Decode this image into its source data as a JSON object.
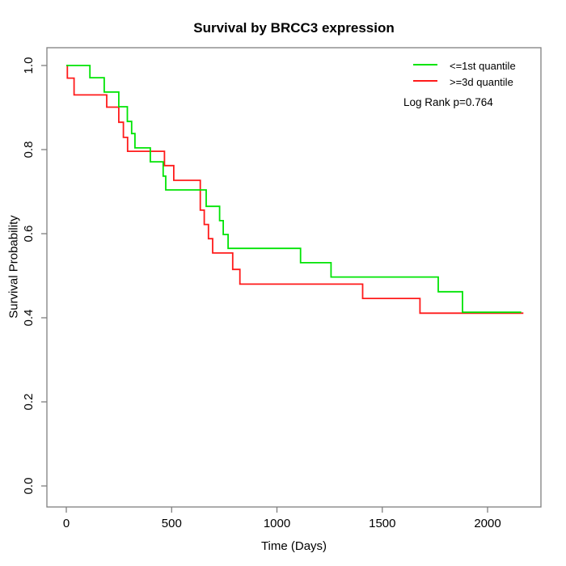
{
  "figure": {
    "legend": {
      "items": [
        {
          "label": "<=1st quantile",
          "color": "#00e404"
        },
        {
          "label": ">=3d quantile",
          "color": "#ff1a1a"
        }
      ]
    }
  },
  "chart_data": {
    "type": "line",
    "subtype": "kaplan_meier_step_survival",
    "title": "Survival by BRCC3 expression",
    "xlabel": "Time (Days)",
    "ylabel": "Survival Probability",
    "annotation": "Log Rank p=0.764",
    "x_ticks": [
      0,
      500,
      1000,
      1500,
      2000
    ],
    "y_ticks": [
      0.0,
      0.2,
      0.4,
      0.6,
      0.8,
      1.0
    ],
    "y_tick_labels": [
      "0.0",
      "0.2",
      "0.4",
      "0.6",
      "0.8",
      "1.0"
    ],
    "xlim": [
      -92,
      2253
    ],
    "ylim": [
      -0.05,
      1.04
    ],
    "grid": false,
    "legend_position": "top-right",
    "axis_color": "#7f7f7f",
    "series": [
      {
        "name": ">=3d quantile",
        "color": "#ff1a1a",
        "end_day": 2170,
        "steps": [
          [
            0,
            1.0
          ],
          [
            5,
            0.97
          ],
          [
            37,
            0.93
          ],
          [
            192,
            0.901
          ],
          [
            249,
            0.865
          ],
          [
            271,
            0.829
          ],
          [
            291,
            0.796
          ],
          [
            466,
            0.762
          ],
          [
            510,
            0.727
          ],
          [
            636,
            0.656
          ],
          [
            655,
            0.622
          ],
          [
            675,
            0.588
          ],
          [
            695,
            0.554
          ],
          [
            790,
            0.515
          ],
          [
            824,
            0.48
          ],
          [
            1407,
            0.446
          ],
          [
            1679,
            0.411
          ]
        ]
      },
      {
        "name": "<=1st quantile",
        "color": "#00e404",
        "end_day": 2160,
        "steps": [
          [
            0,
            1.0
          ],
          [
            112,
            0.971
          ],
          [
            180,
            0.937
          ],
          [
            249,
            0.902
          ],
          [
            290,
            0.867
          ],
          [
            310,
            0.838
          ],
          [
            326,
            0.804
          ],
          [
            399,
            0.771
          ],
          [
            460,
            0.737
          ],
          [
            472,
            0.704
          ],
          [
            664,
            0.665
          ],
          [
            728,
            0.631
          ],
          [
            745,
            0.598
          ],
          [
            768,
            0.565
          ],
          [
            1112,
            0.531
          ],
          [
            1257,
            0.497
          ],
          [
            1766,
            0.462
          ],
          [
            1881,
            0.413
          ]
        ]
      }
    ]
  }
}
